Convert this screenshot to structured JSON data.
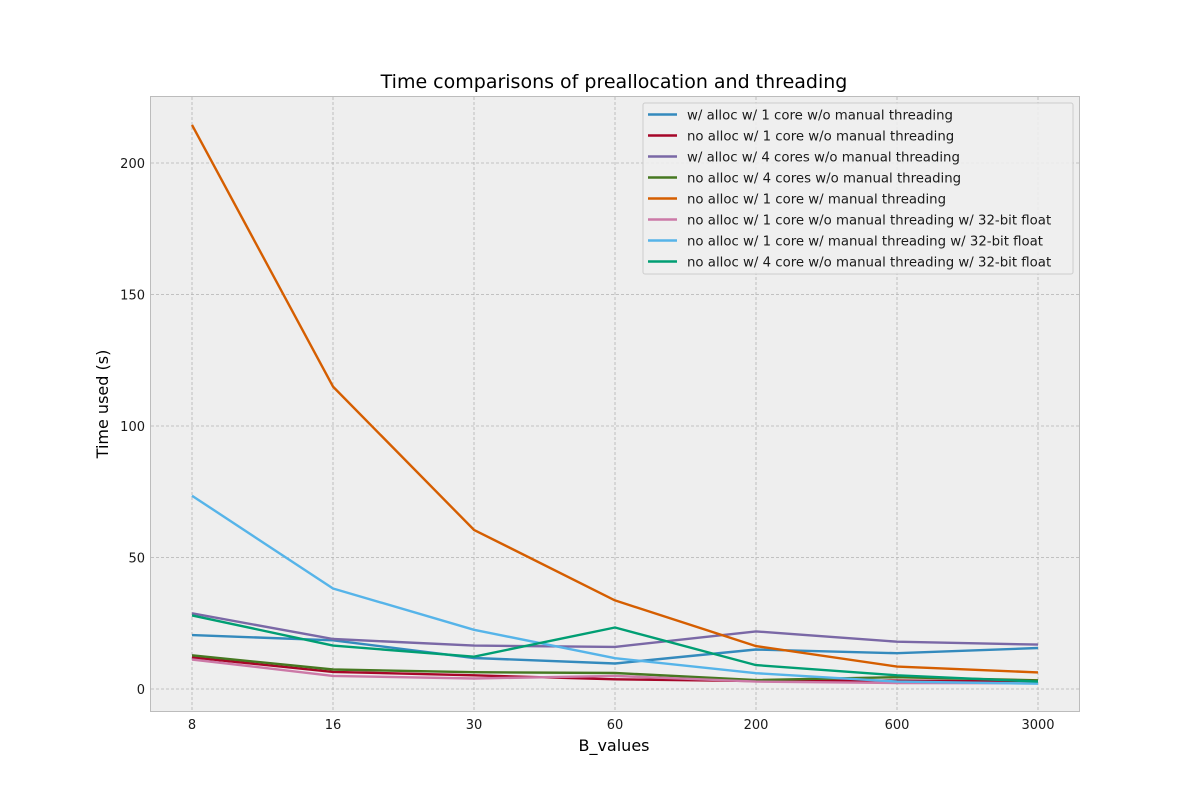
{
  "chart_data": {
    "type": "line",
    "title": "Time comparisons of preallocation and threading",
    "xlabel": "B_values",
    "ylabel": "Time used (s)",
    "categories": [
      "8",
      "16",
      "30",
      "60",
      "200",
      "600",
      "3000"
    ],
    "ylim": [
      -9,
      225
    ],
    "yticks": [
      0,
      50,
      100,
      150,
      200
    ],
    "grid": true,
    "legend_position": "top-right",
    "series": [
      {
        "name": "w/ alloc w/ 1 core w/o manual threading",
        "color": "#348ABD",
        "values": [
          20.5,
          18.5,
          11.8,
          9.7,
          15.0,
          13.6,
          15.6
        ]
      },
      {
        "name": "no alloc w/ 1 core w/o manual threading",
        "color": "#A60628",
        "values": [
          12.0,
          6.5,
          5.2,
          3.7,
          3.0,
          3.2,
          2.8
        ]
      },
      {
        "name": "w/ alloc w/ 4 cores w/o manual threading",
        "color": "#7A68A6",
        "values": [
          28.8,
          19.0,
          16.5,
          16.0,
          21.9,
          18.0,
          16.9
        ]
      },
      {
        "name": "no alloc w/ 4 cores w/o manual threading",
        "color": "#467821",
        "values": [
          12.8,
          7.4,
          6.4,
          6.1,
          3.4,
          4.5,
          3.3
        ]
      },
      {
        "name": "no alloc w/ 1 core w/ manual threading",
        "color": "#D55E00",
        "values": [
          214.5,
          115.0,
          60.5,
          33.7,
          16.3,
          8.5,
          6.3
        ]
      },
      {
        "name": "no alloc w/ 1 core w/o manual threading w/ 32-bit float",
        "color": "#CC79A7",
        "values": [
          11.2,
          5.0,
          4.0,
          5.0,
          2.8,
          2.3,
          2.2
        ]
      },
      {
        "name": "no alloc w/ 1 core w/ manual threading w/ 32-bit float",
        "color": "#56B4E9",
        "values": [
          73.5,
          38.2,
          22.5,
          11.7,
          6.0,
          2.8,
          2.0
        ]
      },
      {
        "name": "no alloc w/ 4 core w/o manual threading w/ 32-bit float",
        "color": "#009E73",
        "values": [
          28.0,
          16.5,
          12.3,
          23.4,
          9.1,
          5.2,
          2.8
        ]
      }
    ]
  }
}
